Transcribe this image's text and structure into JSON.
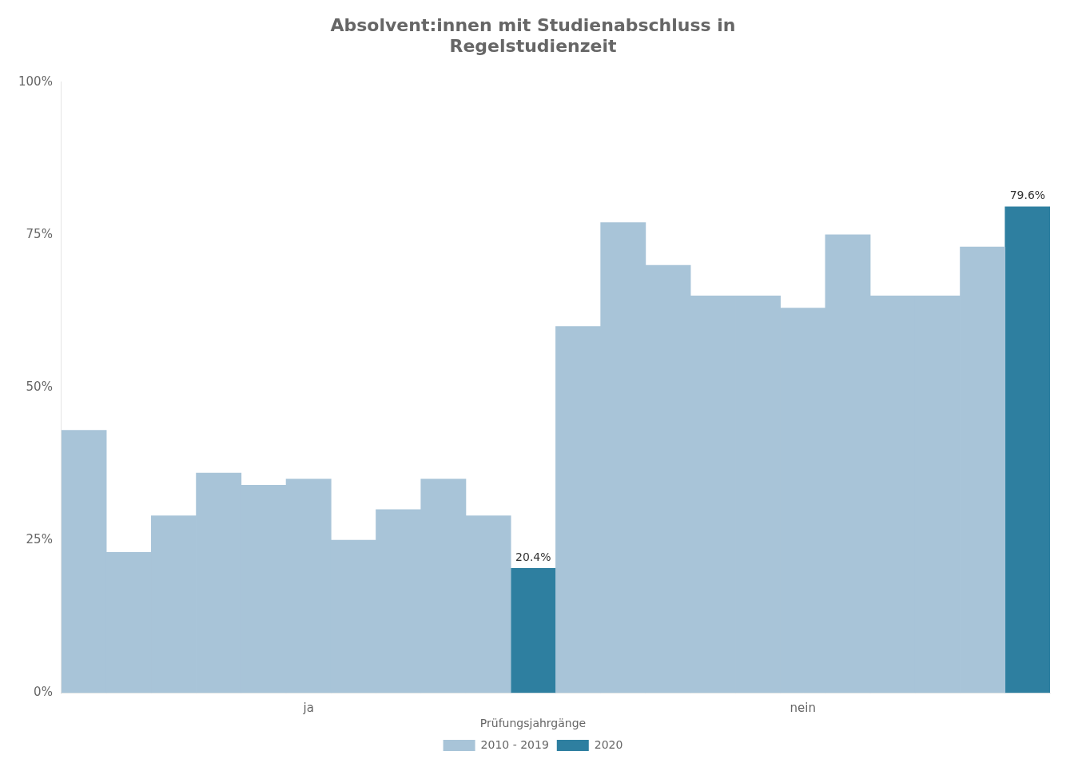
{
  "chart_data": {
    "type": "bar",
    "title": "Absolvent:innen mit Studienabschluss in\nRegelstudienzeit",
    "categories": [
      null,
      null,
      null,
      null,
      null,
      "ja",
      null,
      null,
      null,
      null,
      null,
      null,
      null,
      null,
      null,
      null,
      "nein",
      null,
      null,
      null,
      null,
      null
    ],
    "series": [
      {
        "name": "2010 - 2019",
        "color": "#a8c4d8",
        "values": [
          43,
          23,
          29,
          36,
          34,
          35,
          25,
          30,
          35,
          29,
          null,
          60,
          77,
          70,
          65,
          65,
          63,
          75,
          65,
          65,
          73,
          null
        ]
      },
      {
        "name": "2020",
        "color": "#2e7fa0",
        "data_labels": true,
        "values": [
          null,
          null,
          null,
          null,
          null,
          null,
          null,
          null,
          null,
          null,
          20.4,
          null,
          null,
          null,
          null,
          null,
          null,
          null,
          null,
          null,
          null,
          79.6
        ],
        "value_labels": [
          null,
          null,
          null,
          null,
          null,
          null,
          null,
          null,
          null,
          null,
          "20.4%",
          null,
          null,
          null,
          null,
          null,
          null,
          null,
          null,
          null,
          null,
          "79.6%"
        ]
      }
    ],
    "ylim": [
      0,
      100
    ],
    "yticks": [
      {
        "value": 0,
        "label": "0%"
      },
      {
        "value": 25,
        "label": "25%"
      },
      {
        "value": 50,
        "label": "50%"
      },
      {
        "value": 75,
        "label": "75%"
      },
      {
        "value": 100,
        "label": "100%"
      }
    ],
    "grid": false,
    "legend": "bottom",
    "legend_title": "Prüfungsjahrgänge"
  }
}
